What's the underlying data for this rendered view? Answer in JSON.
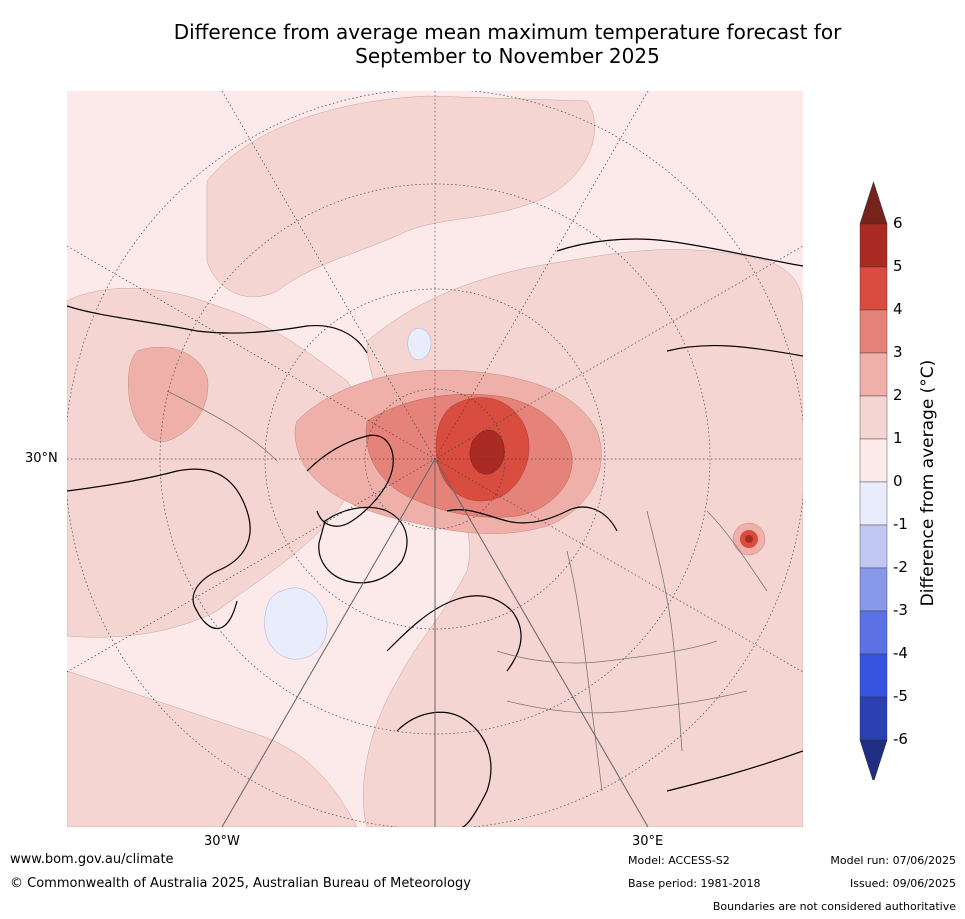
{
  "title": {
    "line1": "Difference from average mean maximum temperature forecast for",
    "line2": "September to November 2025"
  },
  "map": {
    "projection": "north-polar-stereographic",
    "graticule": {
      "lat_label": "30°N",
      "lon_labels": [
        "30°W",
        "30°E"
      ]
    },
    "anomaly_fields": [
      {
        "region": "general-background",
        "class": "0 to 1"
      },
      {
        "region": "north-pacific-north-america",
        "class": "1 to 2"
      },
      {
        "region": "northern-canada-patch",
        "class": "2 to 3"
      },
      {
        "region": "arctic-ocean-barents-kara",
        "class": "3 to 4"
      },
      {
        "region": "barents-sea-core",
        "class": "4 to 5"
      },
      {
        "region": "novaya-zemlya-core",
        "class": "5 to 6"
      },
      {
        "region": "north-atlantic-patch",
        "class": "-1 to 0"
      },
      {
        "region": "east-asia-hotspot",
        "class": "4 to 6"
      }
    ],
    "colors": {
      "ocean_land_bg": "#fbeae9",
      "graticule": "#444444",
      "coastline": "#000000",
      "borders": "#777777"
    }
  },
  "colorbar": {
    "label": "Difference from average (°C)",
    "ticks": [
      "6",
      "5",
      "4",
      "3",
      "2",
      "1",
      "0",
      "-1",
      "-2",
      "-3",
      "-4",
      "-5",
      "-6"
    ],
    "bins_top_to_bottom": [
      {
        "range": "5 to 6",
        "color": "#a92b24"
      },
      {
        "range": "4 to 5",
        "color": "#d94c40"
      },
      {
        "range": "3 to 4",
        "color": "#e5837a"
      },
      {
        "range": "2 to 3",
        "color": "#efb0aa"
      },
      {
        "range": "1 to 2",
        "color": "#f5d5d2"
      },
      {
        "range": "0 to 1",
        "color": "#fbeae9"
      },
      {
        "range": "-1 to 0",
        "color": "#e8ecfb"
      },
      {
        "range": "-2 to -1",
        "color": "#c0c8f2"
      },
      {
        "range": "-3 to -2",
        "color": "#8999ea"
      },
      {
        "range": "-4 to -3",
        "color": "#5c72e4"
      },
      {
        "range": "-5 to -4",
        "color": "#3552e0"
      },
      {
        "range": "-6 to -5",
        "color": "#2a40b3"
      }
    ],
    "extend_top_color": "#76231c",
    "extend_bottom_color": "#1f2d82"
  },
  "footer": {
    "website": "www.bom.gov.au/climate",
    "copyright": "© Commonwealth of Australia 2025, Australian Bureau of Meteorology",
    "model": "Model: ACCESS-S2",
    "base_period": "Base period: 1981-2018",
    "model_run": "Model run: 07/06/2025",
    "issued": "Issued: 09/06/2025",
    "disclaimer": "Boundaries are not considered authoritative"
  }
}
